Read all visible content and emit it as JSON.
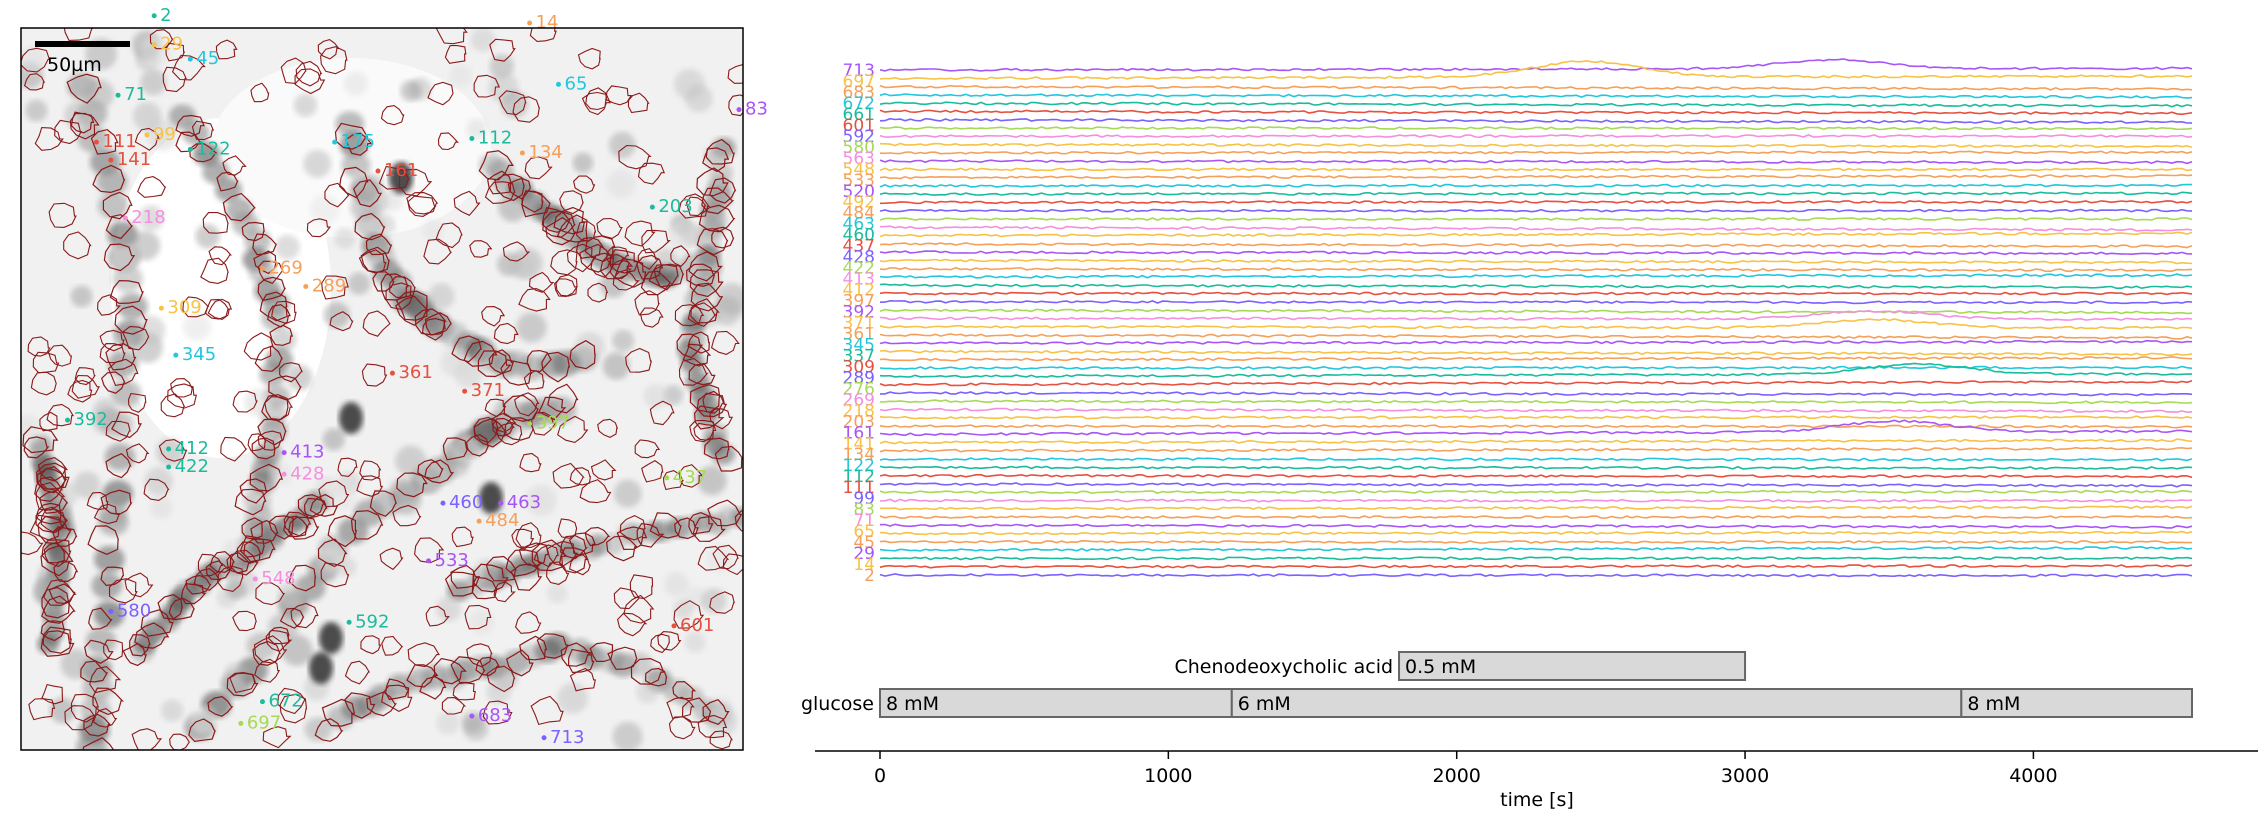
{
  "chart_data": [
    {
      "type": "image",
      "panel": "roi-map",
      "scalebar_label": "50µm",
      "roi_labels": [
        {
          "id": "2",
          "color": "#1abc9c",
          "x": 0.19,
          "y": -0.01
        },
        {
          "id": "14",
          "color": "#f5a05a",
          "x": 0.71,
          "y": 0.0
        },
        {
          "id": "29",
          "color": "#f7c245",
          "x": 0.19,
          "y": 0.03
        },
        {
          "id": "45",
          "color": "#22c7dc",
          "x": 0.24,
          "y": 0.05
        },
        {
          "id": "65",
          "color": "#22c7dc",
          "x": 0.75,
          "y": 0.085
        },
        {
          "id": "71",
          "color": "#1abc9c",
          "x": 0.14,
          "y": 0.1
        },
        {
          "id": "83",
          "color": "#a855f7",
          "x": 1.0,
          "y": 0.12
        },
        {
          "id": "99",
          "color": "#f7c245",
          "x": 0.18,
          "y": 0.155
        },
        {
          "id": "111",
          "color": "#e6503f",
          "x": 0.11,
          "y": 0.165
        },
        {
          "id": "112",
          "color": "#1abc9c",
          "x": 0.63,
          "y": 0.16
        },
        {
          "id": "122",
          "color": "#1abc9c",
          "x": 0.24,
          "y": 0.175
        },
        {
          "id": "134",
          "color": "#f5a05a",
          "x": 0.7,
          "y": 0.18
        },
        {
          "id": "141",
          "color": "#e6503f",
          "x": 0.13,
          "y": 0.19
        },
        {
          "id": "161",
          "color": "#e6503f",
          "x": 0.5,
          "y": 0.205
        },
        {
          "id": "175",
          "color": "#22c7dc",
          "x": 0.44,
          "y": 0.165
        },
        {
          "id": "218",
          "color": "#f48fe0",
          "x": 0.15,
          "y": 0.27
        },
        {
          "id": "203",
          "color": "#1abc9c",
          "x": 0.88,
          "y": 0.255
        },
        {
          "id": "269",
          "color": "#f5a05a",
          "x": 0.34,
          "y": 0.34
        },
        {
          "id": "289",
          "color": "#f5a05a",
          "x": 0.4,
          "y": 0.365
        },
        {
          "id": "309",
          "color": "#f7c245",
          "x": 0.2,
          "y": 0.395
        },
        {
          "id": "345",
          "color": "#22c7dc",
          "x": 0.22,
          "y": 0.46
        },
        {
          "id": "361",
          "color": "#e6503f",
          "x": 0.52,
          "y": 0.485
        },
        {
          "id": "371",
          "color": "#e6503f",
          "x": 0.62,
          "y": 0.51
        },
        {
          "id": "392",
          "color": "#1abc9c",
          "x": 0.07,
          "y": 0.55
        },
        {
          "id": "397",
          "color": "#a6d955",
          "x": 0.71,
          "y": 0.555
        },
        {
          "id": "412",
          "color": "#1abc9c",
          "x": 0.21,
          "y": 0.59
        },
        {
          "id": "413",
          "color": "#a855f7",
          "x": 0.37,
          "y": 0.595
        },
        {
          "id": "422",
          "color": "#1abc9c",
          "x": 0.21,
          "y": 0.615
        },
        {
          "id": "428",
          "color": "#f48fe0",
          "x": 0.37,
          "y": 0.625
        },
        {
          "id": "437",
          "color": "#a6d955",
          "x": 0.9,
          "y": 0.63
        },
        {
          "id": "460",
          "color": "#7b61ff",
          "x": 0.59,
          "y": 0.665
        },
        {
          "id": "463",
          "color": "#a855f7",
          "x": 0.67,
          "y": 0.665
        },
        {
          "id": "484",
          "color": "#f5a05a",
          "x": 0.64,
          "y": 0.69
        },
        {
          "id": "533",
          "color": "#a855f7",
          "x": 0.57,
          "y": 0.745
        },
        {
          "id": "548",
          "color": "#f48fe0",
          "x": 0.33,
          "y": 0.77
        },
        {
          "id": "580",
          "color": "#7b61ff",
          "x": 0.13,
          "y": 0.815
        },
        {
          "id": "592",
          "color": "#1abc9c",
          "x": 0.46,
          "y": 0.83
        },
        {
          "id": "601",
          "color": "#e6503f",
          "x": 0.91,
          "y": 0.835
        },
        {
          "id": "672",
          "color": "#1abc9c",
          "x": 0.34,
          "y": 0.94
        },
        {
          "id": "683",
          "color": "#a855f7",
          "x": 0.63,
          "y": 0.96
        },
        {
          "id": "697",
          "color": "#a6d955",
          "x": 0.31,
          "y": 0.97
        },
        {
          "id": "713",
          "color": "#7b61ff",
          "x": 0.73,
          "y": 0.99
        }
      ]
    },
    {
      "type": "line",
      "panel": "traces",
      "xlabel": "time [s]",
      "xlim": [
        -230,
        4800
      ],
      "xticks": [
        0,
        1000,
        2000,
        3000,
        4000
      ],
      "trace_xlim": [
        0,
        4550
      ],
      "trace_labels": [
        "713",
        "697",
        "683",
        "672",
        "661",
        "601",
        "592",
        "580",
        "563",
        "548",
        "533",
        "520",
        "492",
        "484",
        "463",
        "460",
        "437",
        "428",
        "422",
        "413",
        "412",
        "397",
        "392",
        "371",
        "361",
        "345",
        "337",
        "309",
        "289",
        "276",
        "269",
        "218",
        "203",
        "161",
        "141",
        "134",
        "122",
        "112",
        "111",
        "99",
        "83",
        "71",
        "65",
        "45",
        "29",
        "14",
        "2"
      ],
      "trace_colors": [
        "#a855f7",
        "#f7c245",
        "#f5a05a",
        "#22c7dc",
        "#1abc9c",
        "#e6503f",
        "#7b61ff",
        "#a6d955",
        "#f48fe0",
        "#f7c245",
        "#f5a05a"
      ],
      "protocol": [
        {
          "name": "Chenodeoxycholic acid",
          "segments": [
            {
              "label": "0.5 mM",
              "start": 1800,
              "end": 3000
            }
          ]
        },
        {
          "name": "glucose",
          "segments": [
            {
              "label": "8 mM",
              "start": 0,
              "end": 1220
            },
            {
              "label": "6 mM",
              "start": 1220,
              "end": 3750
            },
            {
              "label": "8 mM",
              "start": 3750,
              "end": 4550
            }
          ]
        }
      ],
      "events": [
        {
          "trace": "713",
          "peak_time": 3300,
          "amplitude": 0.9
        },
        {
          "trace": "697",
          "peak_time": 2450,
          "amplitude": 1.6
        },
        {
          "trace": "161",
          "peak_time": 3520,
          "amplitude": 1.1
        },
        {
          "trace": "289",
          "peak_time": 3600,
          "amplitude": 1.0
        },
        {
          "trace": "371",
          "peak_time": 3450,
          "amplitude": 0.8
        }
      ]
    }
  ]
}
